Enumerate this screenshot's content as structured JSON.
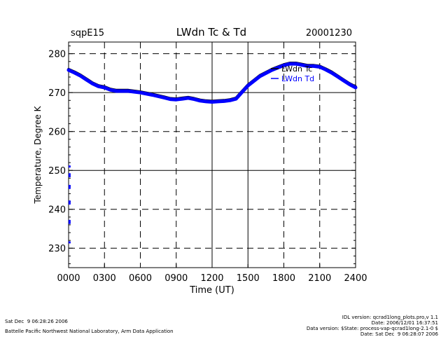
{
  "header": {
    "site": "sqpE15",
    "title": "LWdn Tc & Td",
    "date": "20001230"
  },
  "chart_data": {
    "type": "line",
    "title": "LWdn Tc & Td",
    "xlabel": "Time (UT)",
    "ylabel": "Temperature, Degree K",
    "xlim": [
      0,
      2400
    ],
    "ylim": [
      225,
      283
    ],
    "x_ticks": [
      "0000",
      "0300",
      "0600",
      "0900",
      "1200",
      "1500",
      "1800",
      "2100",
      "2400"
    ],
    "y_ticks": [
      "230",
      "240",
      "250",
      "260",
      "270",
      "280"
    ],
    "grid": true,
    "legend_placement": "top-right",
    "series": [
      {
        "name": "LWdn Tc",
        "color": "#000000",
        "x": [
          0,
          50,
          100,
          150,
          200,
          250,
          300,
          350,
          400,
          500,
          600,
          700,
          800,
          850,
          900,
          950,
          1000,
          1050,
          1100,
          1150,
          1200,
          1250,
          1300,
          1350,
          1400,
          1450,
          1500,
          1550,
          1600,
          1650,
          1700,
          1750,
          1800,
          1850,
          1900,
          1950,
          2000,
          2050,
          2100,
          2150,
          2200,
          2250,
          2300,
          2350,
          2400
        ],
        "y": [
          276.0,
          275.3,
          274.5,
          273.5,
          272.5,
          271.8,
          271.5,
          270.9,
          270.6,
          270.6,
          270.2,
          269.6,
          268.9,
          268.5,
          268.4,
          268.6,
          268.8,
          268.5,
          268.1,
          267.9,
          267.8,
          267.9,
          268.0,
          268.2,
          268.6,
          270.3,
          272.0,
          273.2,
          274.4,
          275.2,
          276.0,
          276.6,
          277.2,
          277.6,
          277.6,
          277.3,
          277.0,
          277.0,
          276.8,
          276.1,
          275.3,
          274.3,
          273.3,
          272.3,
          271.5
        ]
      },
      {
        "name": "LWdn Td",
        "color": "#0000ff",
        "x": [
          0,
          50,
          100,
          150,
          200,
          250,
          300,
          350,
          400,
          500,
          600,
          700,
          800,
          850,
          900,
          950,
          1000,
          1050,
          1100,
          1150,
          1200,
          1250,
          1300,
          1350,
          1400,
          1450,
          1500,
          1550,
          1600,
          1650,
          1700,
          1750,
          1800,
          1850,
          1900,
          1950,
          2000,
          2050,
          2100,
          2150,
          2200,
          2250,
          2300,
          2350,
          2400
        ],
        "y": [
          275.8,
          275.1,
          274.3,
          273.3,
          272.3,
          271.6,
          271.3,
          270.7,
          270.4,
          270.4,
          270.0,
          269.4,
          268.7,
          268.3,
          268.2,
          268.4,
          268.6,
          268.3,
          267.9,
          267.7,
          267.6,
          267.7,
          267.8,
          268.0,
          268.4,
          270.1,
          271.8,
          273.0,
          274.2,
          275.0,
          275.8,
          276.4,
          277.0,
          277.4,
          277.4,
          277.1,
          276.8,
          276.8,
          276.6,
          275.9,
          275.1,
          274.1,
          273.1,
          272.1,
          271.3
        ]
      }
    ],
    "extra_points": {
      "color": "#0000ff",
      "x": [
        8,
        8,
        8,
        8,
        8,
        8,
        8,
        8,
        8,
        8
      ],
      "y": [
        251.0,
        249.0,
        248.5,
        246.0,
        245.5,
        242.0,
        241.5,
        237.0,
        236.5,
        231.5
      ]
    }
  },
  "footer": {
    "left_line1": "Sat Dec  9 06:28:26 2006",
    "left_line2": "Battelle Pacific Northwest National Laboratory, Arm Data Application",
    "right_line1": "IDL version: qcrad1long_plots.pro,v 1.1",
    "right_line2": "Date: 2006/12/01 16:37:51",
    "right_line3": "Data version: $State: process-vap-qcrad1long-2.1-0 $",
    "right_line4": "Date: Sat Dec  9 06:28:07 2006"
  }
}
